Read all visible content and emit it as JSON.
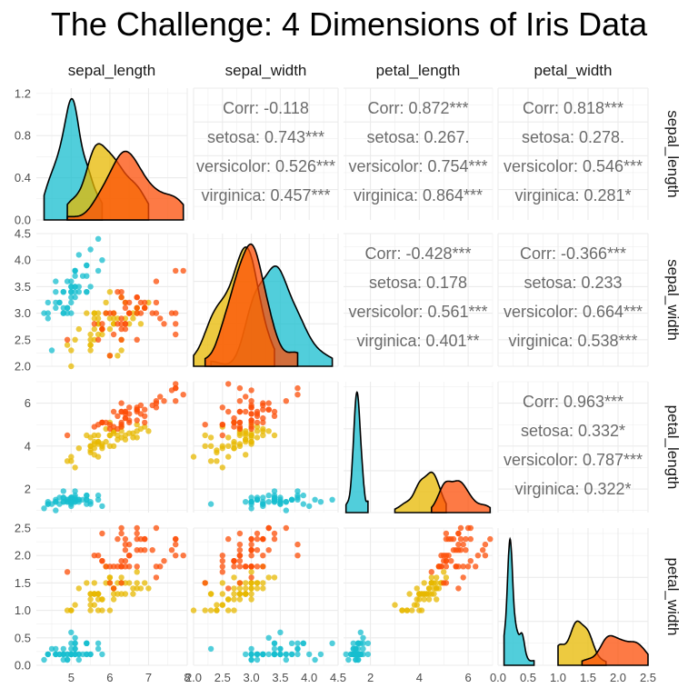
{
  "chart_data": {
    "type": "scatter",
    "title": "The Challenge: 4 Dimensions of Iris Data",
    "variables": [
      "sepal_length",
      "sepal_width",
      "petal_length",
      "petal_width"
    ],
    "series": [
      {
        "name": "setosa",
        "color": "#17BECF"
      },
      {
        "name": "versicolor",
        "color": "#E7B800"
      },
      {
        "name": "virginica",
        "color": "#FC4E07"
      }
    ],
    "axes": {
      "sepal_length": {
        "range": [
          4.1,
          8.0
        ],
        "ticks": [
          "5",
          "6",
          "7",
          "8"
        ],
        "tick_values": [
          5,
          6,
          7,
          8
        ]
      },
      "sepal_width": {
        "range": [
          2.0,
          4.5
        ],
        "ticks": [
          "2.0",
          "2.5",
          "3.0",
          "3.5",
          "4.0",
          "4.5"
        ],
        "tick_values": [
          2.0,
          2.5,
          3.0,
          3.5,
          4.0,
          4.5
        ]
      },
      "petal_length": {
        "range": [
          0.9,
          7.0
        ],
        "ticks": [
          "2",
          "4",
          "6"
        ],
        "tick_values": [
          2,
          4,
          6
        ]
      },
      "petal_width": {
        "range": [
          0.0,
          2.5
        ],
        "ticks": [
          "0.0",
          "0.5",
          "1.0",
          "1.5",
          "2.0",
          "2.5"
        ],
        "tick_values": [
          0.0,
          0.5,
          1.0,
          1.5,
          2.0,
          2.5
        ]
      }
    },
    "density_y_axis": {
      "range": [
        0,
        1.25
      ],
      "ticks": [
        "0.0",
        "0.4",
        "0.8",
        "1.2"
      ],
      "tick_values": [
        0.0,
        0.4,
        0.8,
        1.2
      ]
    },
    "correlations": [
      {
        "row": "sepal_length",
        "col": "sepal_width",
        "lines": [
          "Corr: -0.118",
          "setosa: 0.743***",
          "versicolor: 0.526***",
          "virginica: 0.457***"
        ]
      },
      {
        "row": "sepal_length",
        "col": "petal_length",
        "lines": [
          "Corr: 0.872***",
          "setosa: 0.267.",
          "versicolor: 0.754***",
          "virginica: 0.864***"
        ]
      },
      {
        "row": "sepal_length",
        "col": "petal_width",
        "lines": [
          "Corr: 0.818***",
          "setosa: 0.278.",
          "versicolor: 0.546***",
          "virginica: 0.281*"
        ]
      },
      {
        "row": "sepal_width",
        "col": "petal_length",
        "lines": [
          "Corr: -0.428***",
          "setosa: 0.178",
          "versicolor: 0.561***",
          "virginica: 0.401**"
        ]
      },
      {
        "row": "sepal_width",
        "col": "petal_width",
        "lines": [
          "Corr: -0.366***",
          "setosa: 0.233",
          "versicolor: 0.664***",
          "virginica: 0.538***"
        ]
      },
      {
        "row": "petal_length",
        "col": "petal_width",
        "lines": [
          "Corr: 0.963***",
          "setosa: 0.332*",
          "versicolor: 0.787***",
          "virginica: 0.322*"
        ]
      }
    ],
    "points": {
      "setosa": [
        [
          5.1,
          3.5,
          1.4,
          0.2
        ],
        [
          4.9,
          3.0,
          1.4,
          0.2
        ],
        [
          4.7,
          3.2,
          1.3,
          0.2
        ],
        [
          4.6,
          3.1,
          1.5,
          0.2
        ],
        [
          5.0,
          3.6,
          1.4,
          0.2
        ],
        [
          5.4,
          3.9,
          1.7,
          0.4
        ],
        [
          4.6,
          3.4,
          1.4,
          0.3
        ],
        [
          5.0,
          3.4,
          1.5,
          0.2
        ],
        [
          4.4,
          2.9,
          1.4,
          0.2
        ],
        [
          4.9,
          3.1,
          1.5,
          0.1
        ],
        [
          5.4,
          3.7,
          1.5,
          0.2
        ],
        [
          4.8,
          3.4,
          1.6,
          0.2
        ],
        [
          4.8,
          3.0,
          1.4,
          0.1
        ],
        [
          4.3,
          3.0,
          1.1,
          0.1
        ],
        [
          5.8,
          4.0,
          1.2,
          0.2
        ],
        [
          5.7,
          4.4,
          1.5,
          0.4
        ],
        [
          5.4,
          3.9,
          1.3,
          0.4
        ],
        [
          5.1,
          3.5,
          1.4,
          0.3
        ],
        [
          5.7,
          3.8,
          1.7,
          0.3
        ],
        [
          5.1,
          3.8,
          1.5,
          0.3
        ],
        [
          5.4,
          3.4,
          1.7,
          0.2
        ],
        [
          5.1,
          3.7,
          1.5,
          0.4
        ],
        [
          4.6,
          3.6,
          1.0,
          0.2
        ],
        [
          5.1,
          3.3,
          1.7,
          0.5
        ],
        [
          4.8,
          3.4,
          1.9,
          0.2
        ],
        [
          5.0,
          3.0,
          1.6,
          0.2
        ],
        [
          5.0,
          3.4,
          1.6,
          0.4
        ],
        [
          5.2,
          3.5,
          1.5,
          0.2
        ],
        [
          5.2,
          3.4,
          1.4,
          0.2
        ],
        [
          4.7,
          3.2,
          1.6,
          0.2
        ],
        [
          4.8,
          3.1,
          1.6,
          0.2
        ],
        [
          5.4,
          3.4,
          1.5,
          0.4
        ],
        [
          5.2,
          4.1,
          1.5,
          0.1
        ],
        [
          5.5,
          4.2,
          1.4,
          0.2
        ],
        [
          4.9,
          3.1,
          1.5,
          0.2
        ],
        [
          5.0,
          3.2,
          1.2,
          0.2
        ],
        [
          5.5,
          3.5,
          1.3,
          0.2
        ],
        [
          4.9,
          3.6,
          1.4,
          0.1
        ],
        [
          4.4,
          3.0,
          1.3,
          0.2
        ],
        [
          5.1,
          3.4,
          1.5,
          0.2
        ],
        [
          5.0,
          3.5,
          1.3,
          0.3
        ],
        [
          4.5,
          2.3,
          1.3,
          0.3
        ],
        [
          4.4,
          3.2,
          1.3,
          0.2
        ],
        [
          5.0,
          3.5,
          1.6,
          0.6
        ],
        [
          5.1,
          3.8,
          1.9,
          0.4
        ],
        [
          4.8,
          3.0,
          1.4,
          0.3
        ],
        [
          5.1,
          3.8,
          1.6,
          0.2
        ],
        [
          4.6,
          3.2,
          1.4,
          0.2
        ],
        [
          5.3,
          3.7,
          1.5,
          0.2
        ],
        [
          5.0,
          3.3,
          1.4,
          0.2
        ]
      ],
      "versicolor": [
        [
          7.0,
          3.2,
          4.7,
          1.4
        ],
        [
          6.4,
          3.2,
          4.5,
          1.5
        ],
        [
          6.9,
          3.1,
          4.9,
          1.5
        ],
        [
          5.5,
          2.3,
          4.0,
          1.3
        ],
        [
          6.5,
          2.8,
          4.6,
          1.5
        ],
        [
          5.7,
          2.8,
          4.5,
          1.3
        ],
        [
          6.3,
          3.3,
          4.7,
          1.6
        ],
        [
          4.9,
          2.4,
          3.3,
          1.0
        ],
        [
          6.6,
          2.9,
          4.6,
          1.3
        ],
        [
          5.2,
          2.7,
          3.9,
          1.4
        ],
        [
          5.0,
          2.0,
          3.5,
          1.0
        ],
        [
          5.9,
          3.0,
          4.2,
          1.5
        ],
        [
          6.0,
          2.2,
          4.0,
          1.0
        ],
        [
          6.1,
          2.9,
          4.7,
          1.4
        ],
        [
          5.6,
          2.9,
          3.6,
          1.3
        ],
        [
          6.7,
          3.1,
          4.4,
          1.4
        ],
        [
          5.6,
          3.0,
          4.5,
          1.5
        ],
        [
          5.8,
          2.7,
          4.1,
          1.0
        ],
        [
          6.2,
          2.2,
          4.5,
          1.5
        ],
        [
          5.6,
          2.5,
          3.9,
          1.1
        ],
        [
          5.9,
          3.2,
          4.8,
          1.8
        ],
        [
          6.1,
          2.8,
          4.0,
          1.3
        ],
        [
          6.3,
          2.5,
          4.9,
          1.5
        ],
        [
          6.1,
          2.8,
          4.7,
          1.2
        ],
        [
          6.4,
          2.9,
          4.3,
          1.3
        ],
        [
          6.6,
          3.0,
          4.4,
          1.4
        ],
        [
          6.8,
          2.8,
          4.8,
          1.4
        ],
        [
          6.7,
          3.0,
          5.0,
          1.7
        ],
        [
          6.0,
          2.9,
          4.5,
          1.5
        ],
        [
          5.7,
          2.6,
          3.5,
          1.0
        ],
        [
          5.5,
          2.4,
          3.8,
          1.1
        ],
        [
          5.5,
          2.4,
          3.7,
          1.0
        ],
        [
          5.8,
          2.7,
          3.9,
          1.2
        ],
        [
          6.0,
          2.7,
          5.1,
          1.6
        ],
        [
          5.4,
          3.0,
          4.5,
          1.5
        ],
        [
          6.0,
          3.4,
          4.5,
          1.6
        ],
        [
          6.7,
          3.1,
          4.7,
          1.5
        ],
        [
          6.3,
          2.3,
          4.4,
          1.3
        ],
        [
          5.6,
          3.0,
          4.1,
          1.3
        ],
        [
          5.5,
          2.5,
          4.0,
          1.3
        ],
        [
          5.5,
          2.6,
          4.4,
          1.2
        ],
        [
          6.1,
          3.0,
          4.6,
          1.4
        ],
        [
          5.8,
          2.6,
          4.0,
          1.2
        ],
        [
          5.0,
          2.3,
          3.3,
          1.0
        ],
        [
          5.6,
          2.7,
          4.2,
          1.3
        ],
        [
          5.7,
          3.0,
          4.2,
          1.2
        ],
        [
          5.7,
          2.9,
          4.2,
          1.3
        ],
        [
          6.2,
          2.9,
          4.3,
          1.3
        ],
        [
          5.1,
          2.5,
          3.0,
          1.1
        ],
        [
          5.7,
          2.8,
          4.1,
          1.3
        ]
      ],
      "virginica": [
        [
          6.3,
          3.3,
          6.0,
          2.5
        ],
        [
          5.8,
          2.7,
          5.1,
          1.9
        ],
        [
          7.1,
          3.0,
          5.9,
          2.1
        ],
        [
          6.3,
          2.9,
          5.6,
          1.8
        ],
        [
          6.5,
          3.0,
          5.8,
          2.2
        ],
        [
          7.6,
          3.0,
          6.6,
          2.1
        ],
        [
          4.9,
          2.5,
          4.5,
          1.7
        ],
        [
          7.3,
          2.9,
          6.3,
          1.8
        ],
        [
          6.7,
          2.5,
          5.8,
          1.8
        ],
        [
          7.2,
          3.6,
          6.1,
          2.5
        ],
        [
          6.5,
          3.2,
          5.1,
          2.0
        ],
        [
          6.4,
          2.7,
          5.3,
          1.9
        ],
        [
          6.8,
          3.0,
          5.5,
          2.1
        ],
        [
          5.7,
          2.5,
          5.0,
          2.0
        ],
        [
          5.8,
          2.8,
          5.1,
          2.4
        ],
        [
          6.4,
          3.2,
          5.3,
          2.3
        ],
        [
          6.5,
          3.0,
          5.5,
          1.8
        ],
        [
          7.7,
          3.8,
          6.7,
          2.2
        ],
        [
          7.7,
          2.6,
          6.9,
          2.3
        ],
        [
          6.0,
          2.2,
          5.0,
          1.5
        ],
        [
          6.9,
          3.2,
          5.7,
          2.3
        ],
        [
          5.6,
          2.8,
          4.9,
          2.0
        ],
        [
          7.7,
          2.8,
          6.7,
          2.0
        ],
        [
          6.3,
          2.7,
          4.9,
          1.8
        ],
        [
          6.7,
          3.3,
          5.7,
          2.1
        ],
        [
          7.2,
          3.2,
          6.0,
          1.8
        ],
        [
          6.2,
          2.8,
          4.8,
          1.8
        ],
        [
          6.1,
          3.0,
          4.9,
          1.8
        ],
        [
          6.4,
          2.8,
          5.6,
          2.1
        ],
        [
          7.2,
          3.0,
          5.8,
          1.6
        ],
        [
          7.4,
          2.8,
          6.1,
          1.9
        ],
        [
          7.9,
          3.8,
          6.4,
          2.0
        ],
        [
          6.4,
          2.8,
          5.6,
          2.2
        ],
        [
          6.3,
          2.8,
          5.1,
          1.5
        ],
        [
          6.1,
          2.6,
          5.6,
          1.4
        ],
        [
          7.7,
          3.0,
          6.1,
          2.3
        ],
        [
          6.3,
          3.4,
          5.6,
          2.4
        ],
        [
          6.4,
          3.1,
          5.5,
          1.8
        ],
        [
          6.0,
          3.0,
          4.8,
          1.8
        ],
        [
          6.9,
          3.1,
          5.4,
          2.1
        ],
        [
          6.7,
          3.1,
          5.6,
          2.4
        ],
        [
          6.9,
          3.1,
          5.1,
          2.3
        ],
        [
          5.8,
          2.7,
          5.1,
          1.9
        ],
        [
          6.8,
          3.2,
          5.9,
          2.3
        ],
        [
          6.7,
          3.3,
          5.7,
          2.5
        ],
        [
          6.7,
          3.0,
          5.2,
          2.3
        ],
        [
          6.3,
          2.5,
          5.0,
          1.9
        ],
        [
          6.5,
          3.0,
          5.2,
          2.0
        ],
        [
          6.2,
          3.4,
          5.4,
          2.3
        ],
        [
          5.9,
          3.0,
          5.1,
          1.8
        ]
      ]
    },
    "grid": true,
    "legend": "none"
  }
}
